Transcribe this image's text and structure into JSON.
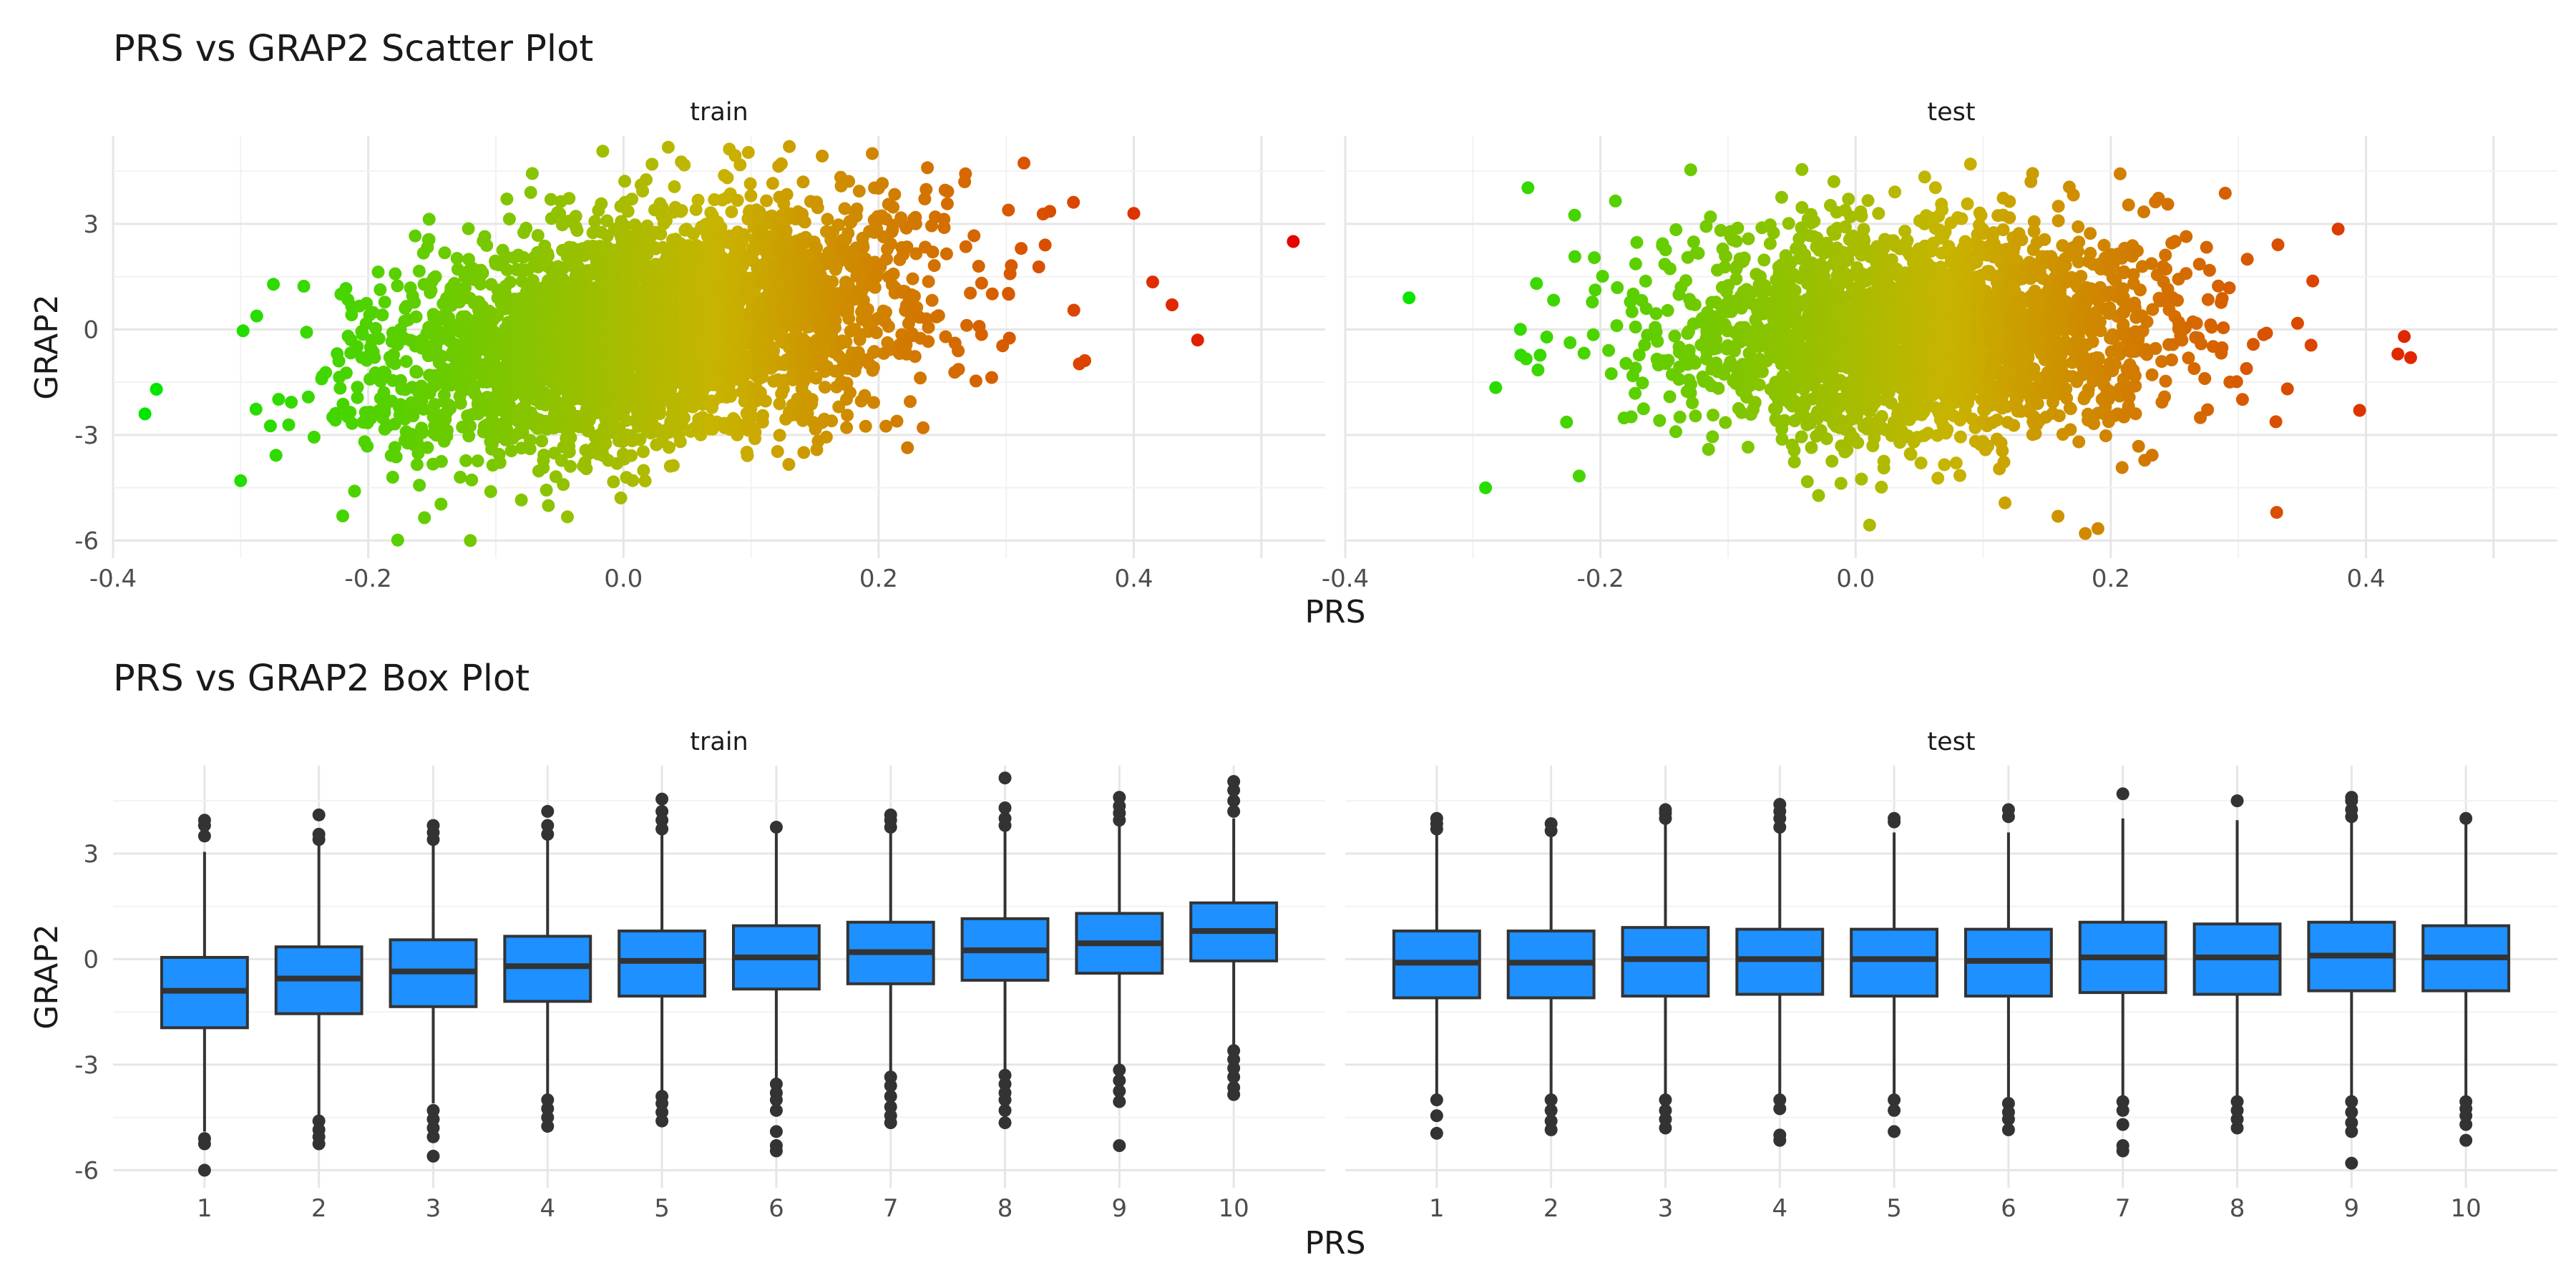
{
  "chart_data": [
    {
      "type": "scatter",
      "title": "PRS vs GRAP2 Scatter Plot",
      "xlabel": "PRS",
      "ylabel": "GRAP2",
      "xlim": [
        -0.4,
        0.55
      ],
      "ylim": [
        -6.5,
        5.5
      ],
      "x_ticks": [
        "-0.4",
        "-0.2",
        "0.0",
        "0.2",
        "0.4"
      ],
      "y_ticks": [
        "-6",
        "-3",
        "0",
        "3"
      ],
      "grid": true,
      "color_scale": {
        "low": "#00e600",
        "mid": "#c8b400",
        "high": "#e60000"
      },
      "panels": [
        {
          "name": "train",
          "cloud": {
            "x_mean": 0.02,
            "x_sd": 0.1,
            "y_mean": 0.0,
            "y_sd": 1.6,
            "slope": 6.0,
            "n": 3500
          },
          "outliers": [
            {
              "x": -0.375,
              "y": -2.4
            },
            {
              "x": -0.366,
              "y": -1.7
            },
            {
              "x": 0.525,
              "y": 2.5
            },
            {
              "x": 0.45,
              "y": -0.3
            },
            {
              "x": 0.43,
              "y": 0.7
            },
            {
              "x": -0.3,
              "y": -4.3
            },
            {
              "x": -0.22,
              "y": -5.3
            },
            {
              "x": -0.12,
              "y": -6.0
            },
            {
              "x": 0.13,
              "y": 5.2
            },
            {
              "x": 0.195,
              "y": 5.0
            },
            {
              "x": 0.4,
              "y": 3.3
            }
          ]
        },
        {
          "name": "test",
          "cloud": {
            "x_mean": 0.05,
            "x_sd": 0.1,
            "y_mean": 0.0,
            "y_sd": 1.55,
            "slope": 0.5,
            "n": 2500
          },
          "outliers": [
            {
              "x": -0.35,
              "y": 0.9
            },
            {
              "x": -0.29,
              "y": -4.5
            },
            {
              "x": 0.425,
              "y": -0.7
            },
            {
              "x": 0.43,
              "y": -0.2
            },
            {
              "x": 0.435,
              "y": -0.8
            },
            {
              "x": 0.395,
              "y": -2.3
            },
            {
              "x": 0.18,
              "y": -5.8
            },
            {
              "x": 0.33,
              "y": -5.2
            },
            {
              "x": 0.09,
              "y": 4.7
            }
          ]
        }
      ]
    },
    {
      "type": "box",
      "title": "PRS vs GRAP2 Box Plot",
      "xlabel": "PRS",
      "ylabel": "GRAP2",
      "categories": [
        "1",
        "2",
        "3",
        "4",
        "5",
        "6",
        "7",
        "8",
        "9",
        "10"
      ],
      "ylim": [
        -6.5,
        5.5
      ],
      "y_ticks": [
        "-6",
        "-3",
        "0",
        "3"
      ],
      "fill": "#1e90ff",
      "grid": true,
      "panels": [
        {
          "name": "train",
          "boxes": [
            {
              "q1": -1.95,
              "median": -0.9,
              "q3": 0.05,
              "low": -4.9,
              "high": 3.05,
              "out_low": [
                -5.1,
                -5.25,
                -6.0
              ],
              "out_high": [
                3.5,
                3.8,
                3.95
              ]
            },
            {
              "q1": -1.55,
              "median": -0.55,
              "q3": 0.35,
              "low": -4.5,
              "high": 3.3,
              "out_low": [
                -4.6,
                -4.85,
                -5.05,
                -5.25
              ],
              "out_high": [
                3.4,
                3.55,
                4.1
              ]
            },
            {
              "q1": -1.35,
              "median": -0.35,
              "q3": 0.55,
              "low": -4.1,
              "high": 3.3,
              "out_low": [
                -4.3,
                -4.55,
                -4.8,
                -5.05,
                -5.6
              ],
              "out_high": [
                3.4,
                3.6,
                3.8
              ]
            },
            {
              "q1": -1.2,
              "median": -0.2,
              "q3": 0.65,
              "low": -3.9,
              "high": 3.4,
              "out_low": [
                -4.0,
                -4.25,
                -4.5,
                -4.75
              ],
              "out_high": [
                3.55,
                3.8,
                4.2
              ]
            },
            {
              "q1": -1.05,
              "median": -0.05,
              "q3": 0.8,
              "low": -3.8,
              "high": 3.55,
              "out_low": [
                -3.9,
                -4.1,
                -4.35,
                -4.6
              ],
              "out_high": [
                3.7,
                3.95,
                4.2,
                4.55
              ]
            },
            {
              "q1": -0.85,
              "median": 0.05,
              "q3": 0.95,
              "low": -3.4,
              "high": 3.7,
              "out_low": [
                -3.55,
                -3.8,
                -4.0,
                -4.3,
                -4.9,
                -5.3,
                -5.45
              ],
              "out_high": [
                3.75
              ]
            },
            {
              "q1": -0.7,
              "median": 0.2,
              "q3": 1.05,
              "low": -3.2,
              "high": 3.6,
              "out_low": [
                -3.35,
                -3.6,
                -3.9,
                -4.2,
                -4.45,
                -4.65
              ],
              "out_high": [
                3.75,
                3.95,
                4.1
              ]
            },
            {
              "q1": -0.6,
              "median": 0.25,
              "q3": 1.15,
              "low": -3.15,
              "high": 3.7,
              "out_low": [
                -3.3,
                -3.55,
                -3.8,
                -4.0,
                -4.3,
                -4.65
              ],
              "out_high": [
                3.8,
                4.0,
                4.3,
                5.15
              ]
            },
            {
              "q1": -0.4,
              "median": 0.45,
              "q3": 1.3,
              "low": -3.0,
              "high": 3.8,
              "out_low": [
                -3.15,
                -3.45,
                -3.75,
                -4.05,
                -5.3
              ],
              "out_high": [
                3.95,
                4.15,
                4.35,
                4.6
              ]
            },
            {
              "q1": -0.05,
              "median": 0.8,
              "q3": 1.6,
              "low": -2.5,
              "high": 4.0,
              "out_low": [
                -2.6,
                -2.85,
                -3.1,
                -3.35,
                -3.65,
                -3.85
              ],
              "out_high": [
                4.2,
                4.5,
                4.8,
                5.05
              ]
            }
          ]
        },
        {
          "name": "test",
          "boxes": [
            {
              "q1": -1.1,
              "median": -0.1,
              "q3": 0.8,
              "low": -3.95,
              "high": 3.6,
              "out_low": [
                -4.0,
                -4.45,
                -4.95
              ],
              "out_high": [
                3.7,
                3.85,
                4.0
              ]
            },
            {
              "q1": -1.1,
              "median": -0.1,
              "q3": 0.8,
              "low": -3.95,
              "high": 3.55,
              "out_low": [
                -4.0,
                -4.3,
                -4.6,
                -4.85
              ],
              "out_high": [
                3.65,
                3.85
              ]
            },
            {
              "q1": -1.05,
              "median": 0.0,
              "q3": 0.9,
              "low": -3.95,
              "high": 3.9,
              "out_low": [
                -4.0,
                -4.3,
                -4.55,
                -4.8
              ],
              "out_high": [
                4.0,
                4.15,
                4.25
              ]
            },
            {
              "q1": -1.0,
              "median": 0.0,
              "q3": 0.85,
              "low": -3.95,
              "high": 3.6,
              "out_low": [
                -4.0,
                -4.25,
                -5.0,
                -5.15
              ],
              "out_high": [
                3.75,
                4.0,
                4.2,
                4.4
              ]
            },
            {
              "q1": -1.05,
              "median": 0.0,
              "q3": 0.85,
              "low": -3.9,
              "high": 3.6,
              "out_low": [
                -4.0,
                -4.3,
                -4.9
              ],
              "out_high": [
                3.9,
                4.0
              ]
            },
            {
              "q1": -1.05,
              "median": -0.05,
              "q3": 0.85,
              "low": -4.0,
              "high": 3.6,
              "out_low": [
                -4.1,
                -4.35,
                -4.55,
                -4.85
              ],
              "out_high": [
                4.05,
                4.25
              ]
            },
            {
              "q1": -0.95,
              "median": 0.05,
              "q3": 1.05,
              "low": -3.9,
              "high": 4.0,
              "out_low": [
                -4.05,
                -4.3,
                -4.7,
                -5.3,
                -5.45
              ],
              "out_high": [
                4.7
              ]
            },
            {
              "q1": -1.0,
              "median": 0.05,
              "q3": 1.0,
              "low": -3.95,
              "high": 3.95,
              "out_low": [
                -4.05,
                -4.3,
                -4.55,
                -4.8
              ],
              "out_high": [
                4.5
              ]
            },
            {
              "q1": -0.9,
              "median": 0.1,
              "q3": 1.05,
              "low": -3.9,
              "high": 3.95,
              "out_low": [
                -4.05,
                -4.35,
                -4.65,
                -4.9,
                -5.8
              ],
              "out_high": [
                4.05,
                4.25,
                4.5,
                4.6
              ]
            },
            {
              "q1": -0.9,
              "median": 0.05,
              "q3": 0.95,
              "low": -3.9,
              "high": 3.95,
              "out_low": [
                -4.05,
                -4.25,
                -4.45,
                -4.7,
                -5.15
              ],
              "out_high": [
                4.0
              ]
            }
          ]
        }
      ]
    }
  ]
}
